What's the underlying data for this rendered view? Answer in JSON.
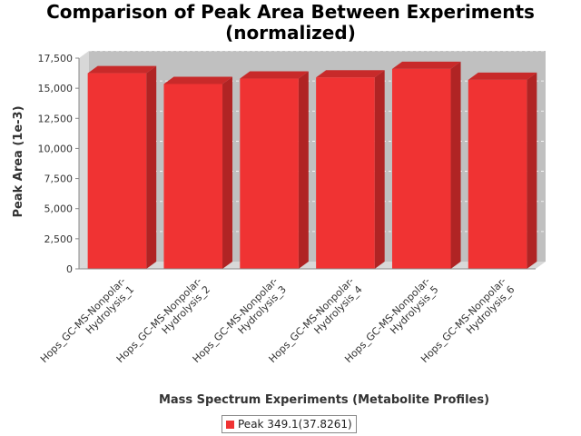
{
  "chart_data": {
    "type": "bar",
    "title_lines": [
      "Comparison of Peak Area Between Experiments",
      "(normalized)"
    ],
    "xlabel": "Mass Spectrum Experiments (Metabolite Profiles)",
    "ylabel": "Peak Area (1e-3)",
    "categories": [
      [
        "Hops_GC-MS-Nonpolar-",
        "Hydrolysis_1"
      ],
      [
        "Hops_GC-MS-Nonpolar-",
        "Hydrolysis_2"
      ],
      [
        "Hops_GC-MS-Nonpolar-",
        "Hydrolysis_3"
      ],
      [
        "Hops_GC-MS-Nonpolar-",
        "Hydrolysis_4"
      ],
      [
        "Hops_GC-MS-Nonpolar-",
        "Hydrolysis_5"
      ],
      [
        "Hops_GC-MS-Nonpolar-",
        "Hydrolysis_6"
      ]
    ],
    "series": [
      {
        "name": "Peak 349.1(37.8261)",
        "values": [
          16250,
          15350,
          15800,
          15900,
          16600,
          15700
        ]
      }
    ],
    "ylim": [
      0,
      17500
    ],
    "yticks": [
      0,
      2500,
      5000,
      7500,
      10000,
      12500,
      15000,
      17500
    ],
    "ytick_labels": [
      "0",
      "2,500",
      "5,000",
      "7,500",
      "10,000",
      "12,500",
      "15,000",
      "17,500"
    ],
    "grid": true,
    "legend_position": "bottom",
    "colors": {
      "bar": "#f03333",
      "bar_top": "#c82a2a",
      "bar_side": "#b02424",
      "plot_bg": "#c0c0c0",
      "wall": "#d8d8d8"
    }
  }
}
